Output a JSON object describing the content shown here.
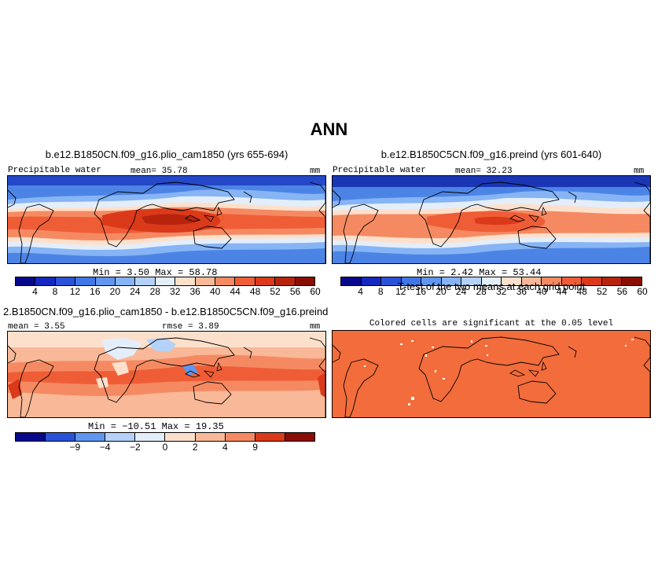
{
  "main_title": "ANN",
  "panels": {
    "top_left": {
      "title": "b.e12.B1850CN.f09_g16.plio_cam1850 (yrs 655-694)",
      "var_label": "Precipitable water",
      "mean_text": "mean=  35.78",
      "units": "mm",
      "minmax_text": "Min =   3.50  Max =  58.78"
    },
    "top_right": {
      "title": "b.e12.B1850C5CN.f09_g16.preind (yrs 601-640)",
      "var_label": "Precipitable water",
      "mean_text": "mean=  32.23",
      "units": "mm",
      "minmax_text": "Min =   2.42  Max =  53.44"
    },
    "bottom_left": {
      "title": "2.B1850CN.f09_g16.plio_cam1850 - b.e12.B1850C5CN.f09_g16.preind",
      "mean_text": "mean =   3.55",
      "rmse_text": "rmse =   3.89",
      "units": "mm",
      "minmax_text": "Min = −10.51  Max =  19.35"
    },
    "bottom_right": {
      "title": "T-test of the two means at each grid point",
      "subtitle": "Colored cells are significant at the 0.05 level"
    }
  },
  "colorbar_abs": {
    "labels": [
      "4",
      "8",
      "12",
      "16",
      "20",
      "24",
      "28",
      "32",
      "36",
      "40",
      "44",
      "48",
      "52",
      "56",
      "60"
    ],
    "colors": [
      "#08088c",
      "#1428c0",
      "#2a52d8",
      "#3f78e6",
      "#6096ef",
      "#86b4f5",
      "#b4d2f9",
      "#e4eefa",
      "#fde0cc",
      "#f9b897",
      "#f58a62",
      "#ef5d36",
      "#db3a1a",
      "#b8230d",
      "#8a0e04"
    ]
  },
  "colorbar_diff": {
    "labels": [
      "−9",
      "−4",
      "−2",
      "0",
      "2",
      "4",
      "9"
    ],
    "colors": [
      "#08088c",
      "#2a52d8",
      "#6096ef",
      "#b4d2f9",
      "#e4eefa",
      "#fde0cc",
      "#f9b897",
      "#f58a62",
      "#db3a1a",
      "#8a0e04"
    ]
  },
  "colors": {
    "ttest_fill": "#f26c3c",
    "diff_base": "#f79a75"
  }
}
